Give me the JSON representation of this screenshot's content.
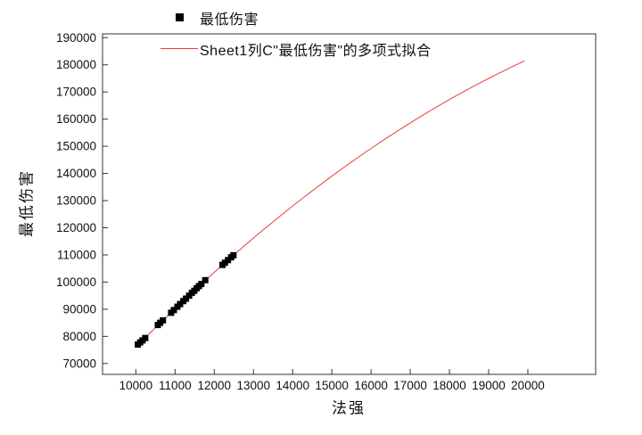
{
  "chart_data": {
    "type": "scatter",
    "title": "",
    "xlabel": "法强",
    "ylabel": "最低伤害",
    "xlim": [
      9150,
      21730
    ],
    "ylim": [
      66000,
      191400
    ],
    "xticks": [
      10000,
      11000,
      12000,
      13000,
      14000,
      15000,
      16000,
      17000,
      18000,
      19000,
      20000
    ],
    "yticks": [
      70000,
      80000,
      90000,
      100000,
      110000,
      120000,
      130000,
      140000,
      150000,
      160000,
      170000,
      180000,
      190000
    ],
    "grid": false,
    "frame_color": "#333333",
    "tick_label_color": "#111111",
    "legend": {
      "position": "top-center",
      "entries": [
        {
          "label": "最低伤害",
          "marker": "square",
          "color": "#000000"
        },
        {
          "label": "Sheet1列C\"最低伤害\"的多项式拟合",
          "marker": "line",
          "color": "#ee3b33"
        }
      ]
    },
    "series": [
      {
        "name": "最低伤害",
        "type": "scatter",
        "marker": "square",
        "marker_size": 7,
        "color": "#000000",
        "points": [
          [
            10050,
            77000
          ],
          [
            10110,
            77800
          ],
          [
            10170,
            78500
          ],
          [
            10240,
            79400
          ],
          [
            10560,
            84200
          ],
          [
            10620,
            85000
          ],
          [
            10690,
            85900
          ],
          [
            10900,
            88700
          ],
          [
            10970,
            89700
          ],
          [
            11060,
            90900
          ],
          [
            11130,
            91900
          ],
          [
            11210,
            93000
          ],
          [
            11280,
            93900
          ],
          [
            11360,
            95000
          ],
          [
            11430,
            96000
          ],
          [
            11490,
            96800
          ],
          [
            11550,
            97700
          ],
          [
            11610,
            98500
          ],
          [
            11670,
            99300
          ],
          [
            11770,
            100700
          ],
          [
            12210,
            106300
          ],
          [
            12270,
            107100
          ],
          [
            12350,
            108100
          ],
          [
            12430,
            109100
          ],
          [
            12490,
            109900
          ]
        ]
      },
      {
        "name": "Sheet1列C\"最低伤害\"的多项式拟合",
        "type": "line",
        "color": "#ee3b33",
        "fit": {
          "kind": "poly2",
          "coefficients": [
            -110000,
            22.6,
            -0.0004
          ],
          "x_start": 10020,
          "x_end": 20000
        }
      }
    ]
  }
}
